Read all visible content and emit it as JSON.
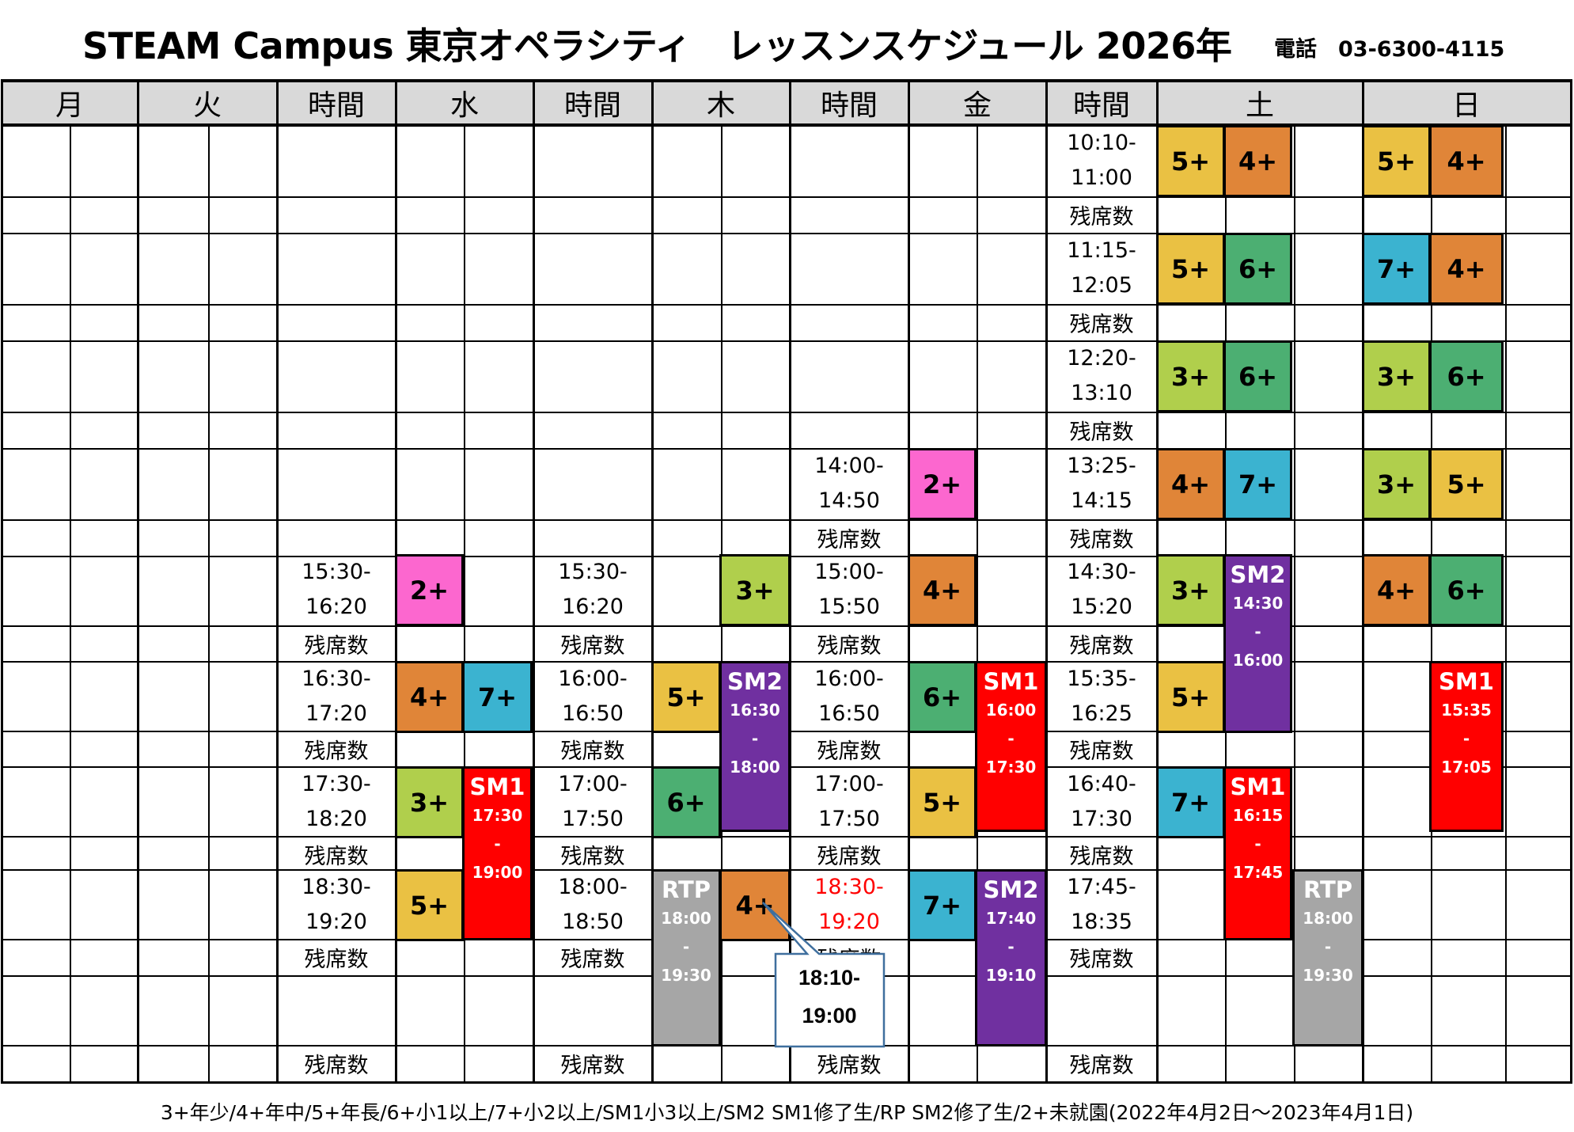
{
  "header": {
    "title": "STEAM Campus 東京オペラシティ　レッスンスケジュール 2026年",
    "phone": "電話　03-6300-4115"
  },
  "days": {
    "mon": "月",
    "tue": "火",
    "time": "時間",
    "wed": "水",
    "thu": "木",
    "fri": "金",
    "sat": "土",
    "sun": "日"
  },
  "remaining_label": "残席数",
  "weekday_slots": {
    "wed": [
      "15:30-\n16:20",
      "16:30-\n17:20",
      "17:30-\n18:20",
      "18:30-\n19:20"
    ],
    "thu": [
      "15:30-\n16:20",
      "16:00-\n16:50",
      "17:00-\n17:50",
      "18:00-\n18:50"
    ],
    "fri": [
      "14:00-\n14:50",
      "15:00-\n15:50",
      "16:00-\n16:50",
      "17:00-\n17:50",
      "18:30-\n19:20"
    ],
    "weekend": [
      "10:10-\n11:00",
      "11:15-\n12:05",
      "12:20-\n13:10",
      "13:25-\n14:15",
      "14:30-\n15:20",
      "15:35-\n16:25",
      "16:40-\n17:30",
      "17:45-\n18:35"
    ]
  },
  "blocks": {
    "sat_1a": "5+",
    "sat_1b": "4+",
    "sun_1a": "5+",
    "sun_1b": "4+",
    "sat_2a": "5+",
    "sat_2b": "6+",
    "sun_2a": "7+",
    "sun_2b": "4+",
    "sat_3a": "3+",
    "sat_3b": "6+",
    "sun_3a": "3+",
    "sun_3b": "6+",
    "fri_1": "2+",
    "sat_4a": "4+",
    "sat_4b": "7+",
    "sun_4a": "3+",
    "sun_4b": "5+",
    "wed_1": "2+",
    "thu_1": "3+",
    "fri_2": "4+",
    "sat_5a": "3+",
    "sun_5a": "4+",
    "sun_5b": "6+",
    "wed_2a": "4+",
    "wed_2b": "7+",
    "thu_2": "5+",
    "fri_3": "6+",
    "sat_6": "5+",
    "wed_3": "3+",
    "thu_3": "6+",
    "fri_4": "5+",
    "sat_7": "7+",
    "wed_4": "5+",
    "thu_4": "4+",
    "fri_5": "7+"
  },
  "special": {
    "sat_sm2": {
      "name": "SM2",
      "t1": "14:30",
      "dash": "-",
      "t2": "16:00"
    },
    "thu_sm2": {
      "name": "SM2",
      "t1": "16:30",
      "dash": "-",
      "t2": "18:00"
    },
    "fri_sm1": {
      "name": "SM1",
      "t1": "16:00",
      "dash": "-",
      "t2": "17:30"
    },
    "sun_sm1": {
      "name": "SM1",
      "t1": "15:35",
      "dash": "-",
      "t2": "17:05"
    },
    "wed_sm1": {
      "name": "SM1",
      "t1": "17:30",
      "dash": "-",
      "t2": "19:00"
    },
    "sat_sm1": {
      "name": "SM1",
      "t1": "16:15",
      "dash": "-",
      "t2": "17:45"
    },
    "thu_rtp": {
      "name": "RTP",
      "t1": "18:00",
      "dash": "-",
      "t2": "19:30"
    },
    "fri_sm2": {
      "name": "SM2",
      "t1": "17:40",
      "dash": "-",
      "t2": "19:10"
    },
    "sat_rtp": {
      "name": "RTP",
      "t1": "18:00",
      "dash": "-",
      "t2": "19:30"
    }
  },
  "callout": {
    "line1": "18:10-",
    "line2": "19:00"
  },
  "colors": {
    "header_bg": "#d9d9d9",
    "c5": "#eac143",
    "c4": "#e08538",
    "c6": "#4caf72",
    "c7": "#3bb3d0",
    "c3": "#b0cf4c",
    "c2": "#fc67cf",
    "sm1": "#ff0000",
    "sm2": "#7030a0",
    "rtp": "#a6a6a6"
  },
  "footer": "3+年少/4+年中/5+年長/6+小1以上/7+小2以上/SM1小3以上/SM2 SM1修了生/RP SM2修了生/2+未就園(2022年4月2日～2023年4月1日)"
}
